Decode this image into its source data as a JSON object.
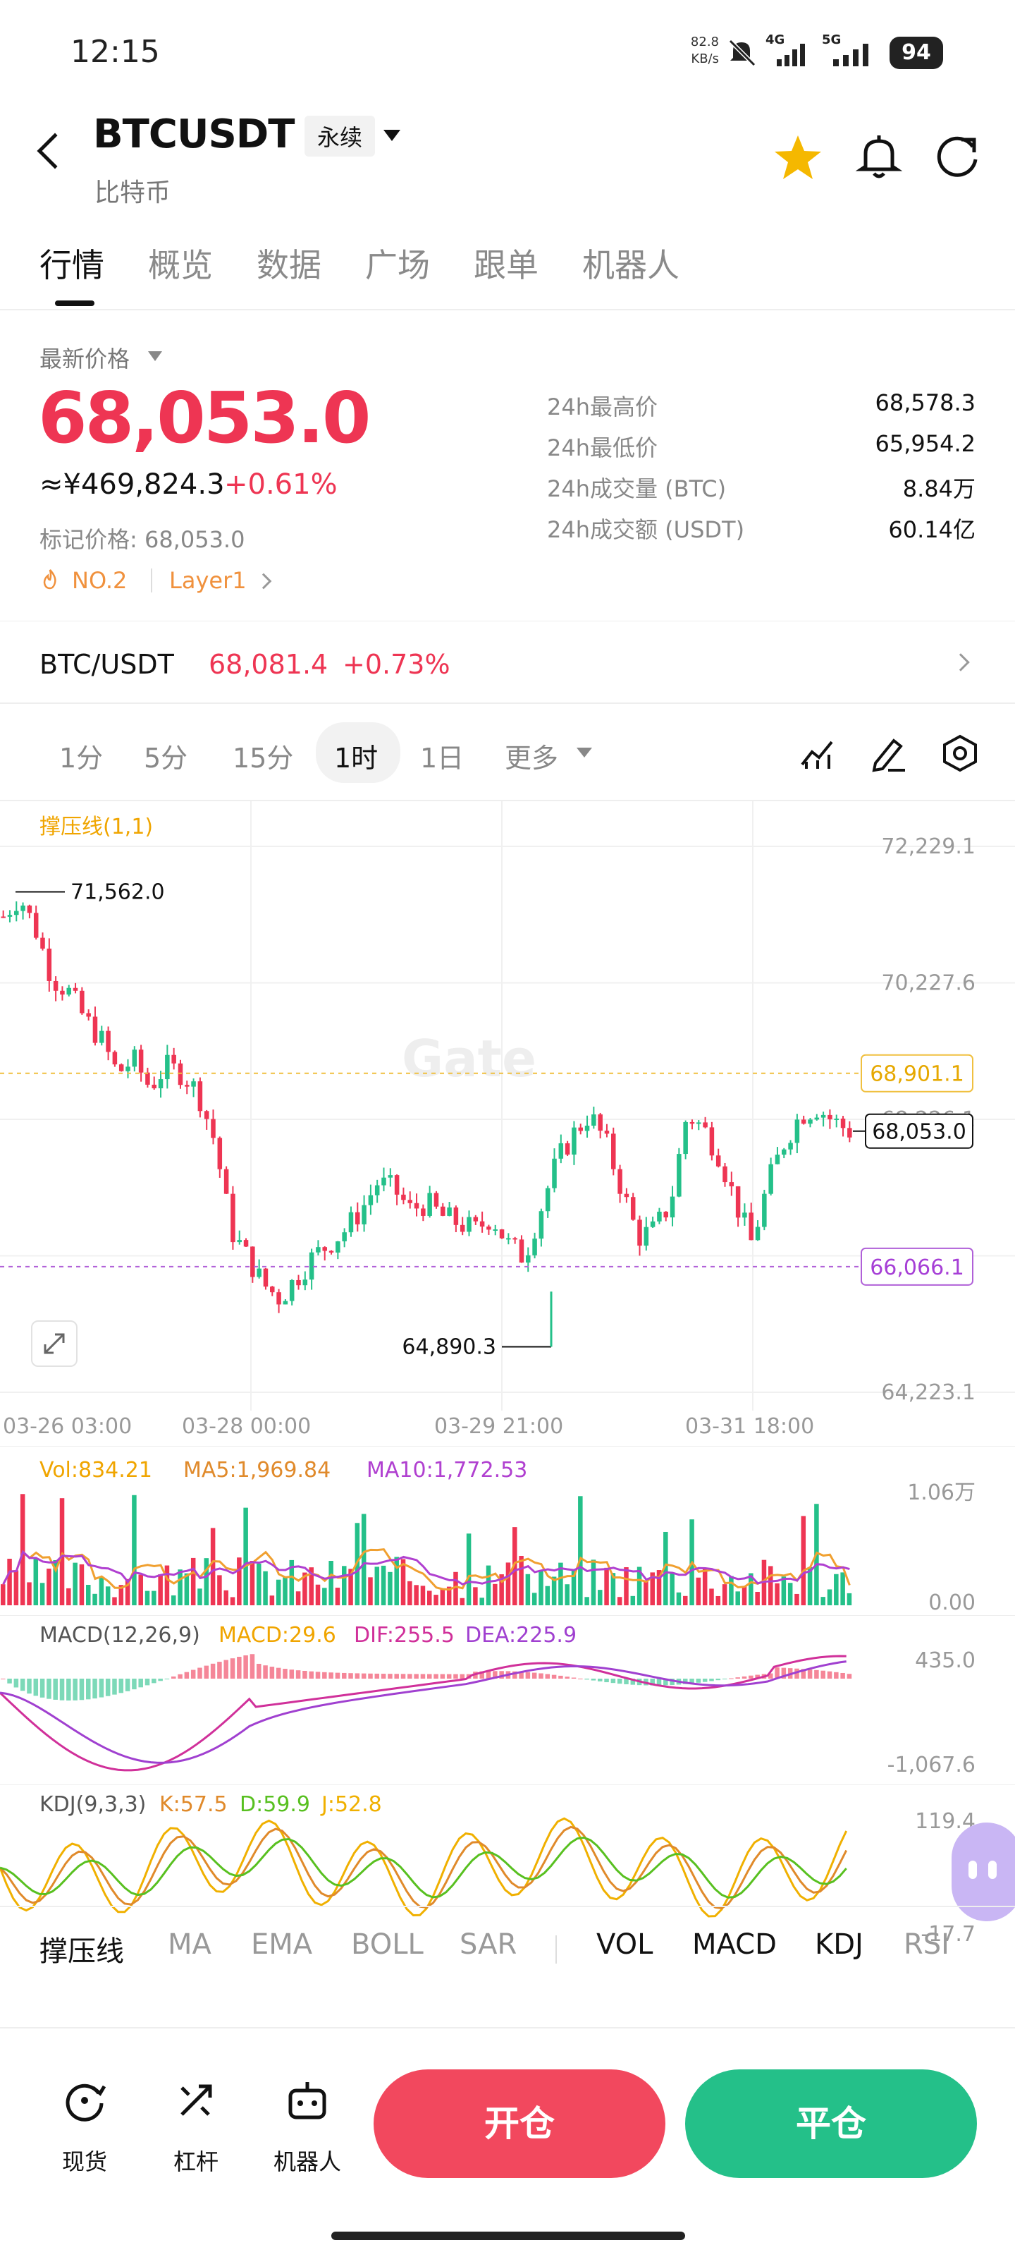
{
  "status": {
    "time": "12:15",
    "speed_value": "82.8",
    "speed_unit": "KB/s",
    "sig1": "4G",
    "sig2": "5G",
    "battery": "94"
  },
  "header": {
    "symbol": "BTCUSDT",
    "contract_type": "永续",
    "subtitle": "比特币"
  },
  "tabs": [
    "行情",
    "概览",
    "数据",
    "广场",
    "跟单",
    "机器人"
  ],
  "price": {
    "latest_label": "最新价格",
    "last": "68,053.0",
    "cny": "≈¥469,824.3",
    "change_pct": "+0.61%",
    "mark": "标记价格: 68,053.0",
    "rank": "NO.2",
    "sector": "Layer1"
  },
  "stats": [
    {
      "label": "24h最高价",
      "value": "68,578.3"
    },
    {
      "label": "24h最低价",
      "value": "65,954.2"
    },
    {
      "label": "24h成交量 (BTC)",
      "value": "8.84万"
    },
    {
      "label": "24h成交额 (USDT)",
      "value": "60.14亿"
    }
  ],
  "spot_pair": {
    "label": "BTC/USDT",
    "price": "68,081.4",
    "change": "+0.73%"
  },
  "intervals": [
    "1分",
    "5分",
    "15分",
    "1时",
    "1日",
    "更多"
  ],
  "active_interval": "1时",
  "chart": {
    "overlay_label": "撑压线(1,1)",
    "watermark": "Gate",
    "y_ticks": [
      "72,229.1",
      "70,227.6",
      "68,226.1",
      "64,223.1"
    ],
    "resistance": "68,901.1",
    "support": "66,066.1",
    "current": "68,053.0",
    "high_label": "71,562.0",
    "low_label": "64,890.3",
    "x_ticks": [
      "03-26 03:00",
      "03-28 00:00",
      "03-29 21:00",
      "03-31 18:00"
    ]
  },
  "chart_data": [
    {
      "type": "candlestick",
      "title": "BTCUSDT 1时",
      "ylim": [
        64223.1,
        72229.1
      ],
      "annotations": {
        "high": 71562.0,
        "low": 64890.3,
        "resistance": 68901.1,
        "support": 66066.1,
        "last": 68053.0
      },
      "x": [
        "03-26 03:00",
        "03-28 00:00",
        "03-29 21:00",
        "03-31 18:00"
      ],
      "close_trend": [
        71200,
        71500,
        71000,
        70300,
        70100,
        69700,
        69400,
        68900,
        69100,
        68700,
        69000,
        68900,
        68600,
        67900,
        66600,
        66200,
        65800,
        65600,
        65900,
        66200,
        66400,
        66600,
        66900,
        67300,
        67200,
        66900,
        67000,
        66800,
        66700,
        66600,
        66800,
        66400,
        66200,
        66900,
        67600,
        68000,
        68300,
        67900,
        67200,
        66500,
        66600,
        67000,
        68300,
        68100,
        67700,
        67000,
        66400,
        67300,
        67900,
        68300,
        68400,
        68200,
        68053
      ]
    },
    {
      "type": "bar",
      "title": "VOL",
      "labels": {
        "vol": "Vol:834.21",
        "ma5": "MA5:1,969.84",
        "ma10": "MA10:1,772.53"
      },
      "y_ticks": [
        "1.06万",
        "0.00"
      ]
    },
    {
      "type": "line",
      "title": "MACD(12,26,9)",
      "labels": {
        "macd": "MACD:29.6",
        "dif": "DIF:255.5",
        "dea": "DEA:225.9"
      },
      "y_ticks": [
        "435.0",
        "-1,067.6"
      ]
    },
    {
      "type": "line",
      "title": "KDJ(9,3,3)",
      "labels": {
        "k": "K:57.5",
        "d": "D:59.9",
        "j": "J:52.8"
      },
      "y_ticks": [
        "119.4",
        "-17.7"
      ]
    }
  ],
  "indicator_tabs": [
    "撑压线",
    "MA",
    "EMA",
    "BOLL",
    "SAR",
    "VOL",
    "MACD",
    "KDJ",
    "RSI"
  ],
  "bottom_nav": [
    "现货",
    "杠杆",
    "机器人"
  ],
  "actions": {
    "open": "开仓",
    "close": "平仓"
  },
  "colors": {
    "up": "#24c089",
    "down": "#ee3553",
    "accent": "#f5b800",
    "support": "#a63fd6"
  }
}
